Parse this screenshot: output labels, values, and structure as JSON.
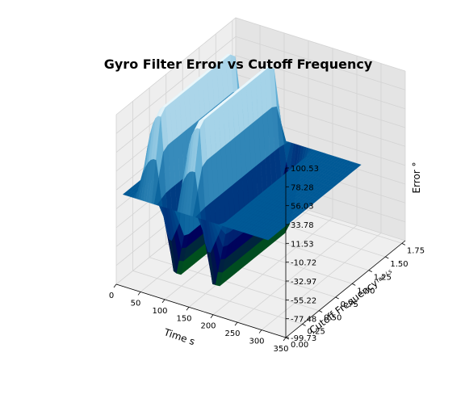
{
  "chart_data": {
    "type": "surface",
    "title": "Gyro Filter Error vs Cutoff Frequency",
    "xlabel": "Time s",
    "ylabel": "Cutoff Frequency",
    "ylabel_unit": "rad / s",
    "zlabel": "Error °",
    "x_ticks": [
      "0",
      "50",
      "100",
      "150",
      "200",
      "250",
      "300",
      "350"
    ],
    "y_ticks": [
      "0.00",
      "0.25",
      "0.50",
      "0.75",
      "1.00",
      "1.25",
      "1.50",
      "1.75"
    ],
    "z_ticks": [
      "-99.73",
      "-77.48",
      "-55.22",
      "-32.97",
      "-10.72",
      "11.53",
      "33.78",
      "56.03",
      "78.28",
      "100.53"
    ],
    "xlim": [
      0,
      350
    ],
    "ylim": [
      0,
      1.8
    ],
    "zlim": [
      -99.73,
      100.53
    ],
    "colormap": "ocean",
    "grid": true,
    "surface_ridges": [
      {
        "x_center": 60,
        "y_range": [
          0.1,
          1.5
        ],
        "z_peak": 100,
        "z_trough": -95
      },
      {
        "x_center": 140,
        "y_range": [
          0.1,
          1.5
        ],
        "z_peak": 100,
        "z_trough": -95
      }
    ]
  },
  "colors": {
    "pane_left": "#eeeeee",
    "pane_right": "#e4e4e4",
    "pane_floor": "#efefef",
    "grid": "#d3d3d3"
  }
}
